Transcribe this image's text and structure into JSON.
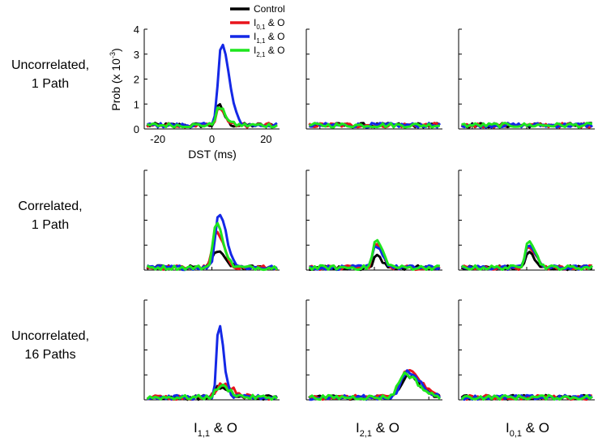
{
  "chart_data": {
    "type": "line",
    "title": "",
    "x_range_ms": [
      -25,
      25
    ],
    "y_range_1e3": [
      0,
      4
    ],
    "axis": {
      "xlabel": "DST (ms)",
      "ylabel_main": "Prob (x 10",
      "ylabel_exp": "-3",
      "ylabel_close": ")",
      "xticks": [
        -20,
        0,
        20
      ],
      "yticks": [
        0,
        1,
        2,
        3,
        4
      ]
    },
    "legend": {
      "placement": "top",
      "entries": [
        {
          "key": "control",
          "main": "Control",
          "sub": "",
          "suffix": "",
          "color": "#000000"
        },
        {
          "key": "i01",
          "main": "I",
          "sub": "0,1",
          "suffix": " & O",
          "color": "#e8141c"
        },
        {
          "key": "i11",
          "main": "I",
          "sub": "1,1",
          "suffix": " & O",
          "color": "#1428e6"
        },
        {
          "key": "i21",
          "main": "I",
          "sub": "2,1",
          "suffix": " & O",
          "color": "#1ee61e"
        }
      ]
    },
    "row_labels": [
      {
        "line1": "Uncorrelated,",
        "line2": "1 Path"
      },
      {
        "line1": "Correlated,",
        "line2": "1 Path"
      },
      {
        "line1": "Uncorrelated,",
        "line2": "16 Paths"
      }
    ],
    "column_labels": [
      {
        "main": "I",
        "sub": "1,1",
        "suffix": " & O"
      },
      {
        "main": "I",
        "sub": "2,1",
        "suffix": " & O"
      },
      {
        "main": "I",
        "sub": "0,1",
        "suffix": " & O"
      }
    ],
    "panels": [
      {
        "row": 0,
        "col": 0,
        "baseline": 0.15,
        "series": {
          "control": {
            "peak": 0.95,
            "center": 2.5,
            "width": 1.6
          },
          "i01": {
            "peak": 0.85,
            "center": 2.5,
            "width": 1.8
          },
          "i11": {
            "peak": 3.4,
            "center": 3.5,
            "width": 2.3
          },
          "i21": {
            "peak": 0.85,
            "center": 2.5,
            "width": 2.0
          }
        }
      },
      {
        "row": 0,
        "col": 1,
        "baseline": 0.15,
        "series": {
          "control": {
            "peak": 0,
            "center": 0,
            "width": 1
          },
          "i01": {
            "peak": 0,
            "center": 0,
            "width": 1
          },
          "i11": {
            "peak": 0,
            "center": 0,
            "width": 1
          },
          "i21": {
            "peak": 0,
            "center": 0,
            "width": 1
          }
        }
      },
      {
        "row": 0,
        "col": 2,
        "baseline": 0.15,
        "series": {
          "control": {
            "peak": 0,
            "center": 0,
            "width": 1
          },
          "i01": {
            "peak": 0,
            "center": 0,
            "width": 1
          },
          "i11": {
            "peak": 0,
            "center": 0,
            "width": 1
          },
          "i21": {
            "peak": 0,
            "center": 0,
            "width": 1
          }
        }
      },
      {
        "row": 1,
        "col": 0,
        "baseline": 0.1,
        "series": {
          "control": {
            "peak": 0.75,
            "center": 1.5,
            "width": 2.5
          },
          "i01": {
            "peak": 1.5,
            "center": 1.5,
            "width": 2.3
          },
          "i11": {
            "peak": 2.3,
            "center": 2.5,
            "width": 2.3
          },
          "i21": {
            "peak": 1.85,
            "center": 1.5,
            "width": 2.2
          }
        }
      },
      {
        "row": 1,
        "col": 1,
        "baseline": 0.1,
        "series": {
          "control": {
            "peak": 0.6,
            "center": 0.5,
            "width": 1.6
          },
          "i01": {
            "peak": 1.05,
            "center": 0.5,
            "width": 2.0
          },
          "i11": {
            "peak": 1.0,
            "center": 0.5,
            "width": 2.0
          },
          "i21": {
            "peak": 1.2,
            "center": 0.5,
            "width": 2.0
          }
        }
      },
      {
        "row": 1,
        "col": 2,
        "baseline": 0.1,
        "series": {
          "control": {
            "peak": 0.75,
            "center": 0.5,
            "width": 1.6
          },
          "i01": {
            "peak": 1.0,
            "center": 0.5,
            "width": 2.0
          },
          "i11": {
            "peak": 1.05,
            "center": 0.5,
            "width": 2.0
          },
          "i21": {
            "peak": 1.25,
            "center": 0.5,
            "width": 2.0
          }
        }
      },
      {
        "row": 2,
        "col": 0,
        "baseline": 0.1,
        "series": {
          "control": {
            "peak": 0.5,
            "center": 2.5,
            "width": 2.6
          },
          "i01": {
            "peak": 0.65,
            "center": 3.5,
            "width": 3.5
          },
          "i11": {
            "peak": 3.0,
            "center": 2.5,
            "width": 1.5
          },
          "i21": {
            "peak": 0.55,
            "center": 3.0,
            "width": 3.0
          }
        }
      },
      {
        "row": 2,
        "col": 1,
        "baseline": 0.1,
        "series": {
          "control": {
            "peak": 0.95,
            "center": 12,
            "width": 4.0
          },
          "i01": {
            "peak": 1.2,
            "center": 12,
            "width": 4.0
          },
          "i11": {
            "peak": 1.1,
            "center": 12,
            "width": 4.0
          },
          "i21": {
            "peak": 1.05,
            "center": 11,
            "width": 4.0
          }
        }
      },
      {
        "row": 2,
        "col": 2,
        "baseline": 0.1,
        "series": {
          "control": {
            "peak": 0,
            "center": 0,
            "width": 1
          },
          "i01": {
            "peak": 0,
            "center": 0,
            "width": 1
          },
          "i11": {
            "peak": 0,
            "center": 0,
            "width": 1
          },
          "i21": {
            "peak": 0,
            "center": 0,
            "width": 1
          }
        }
      }
    ]
  }
}
